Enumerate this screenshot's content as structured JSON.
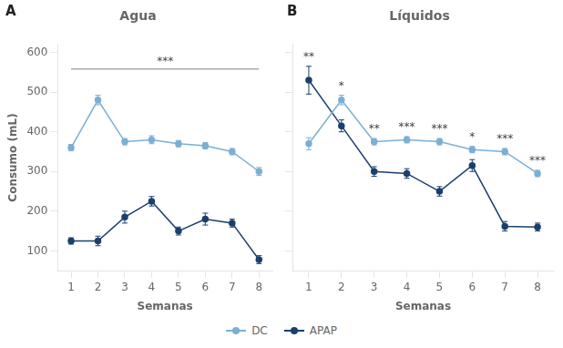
{
  "chart_data": [
    {
      "type": "line",
      "title": "Agua",
      "panel_label": "A",
      "xlabel": "Semanas",
      "ylabel": "Consumo (mL)",
      "x": [
        1,
        2,
        3,
        4,
        5,
        6,
        7,
        8
      ],
      "xlim": [
        0.5,
        8.5
      ],
      "xticks": [
        1,
        2,
        3,
        4,
        5,
        6,
        7,
        8
      ],
      "ylim": [
        50,
        620
      ],
      "yticks": [
        100,
        200,
        300,
        400,
        500,
        600
      ],
      "grid": false,
      "legend": "bottom",
      "series": [
        {
          "name": "DC",
          "color": "#7bafd4",
          "marker": "circle",
          "values": [
            360,
            480,
            375,
            380,
            370,
            365,
            350,
            300
          ],
          "errors": [
            8,
            12,
            8,
            10,
            8,
            8,
            8,
            10
          ]
        },
        {
          "name": "APAP",
          "color": "#1c3f6e",
          "marker": "circle",
          "values": [
            125,
            125,
            185,
            225,
            150,
            180,
            170,
            78
          ],
          "errors": [
            8,
            12,
            15,
            12,
            10,
            15,
            10,
            10
          ]
        }
      ],
      "annotations": [
        {
          "text": "***",
          "x": [
            1,
            8
          ],
          "y": 558
        }
      ]
    },
    {
      "type": "line",
      "title": "Líquidos",
      "panel_label": "B",
      "xlabel": "Semanas",
      "x": [
        1,
        2,
        3,
        4,
        5,
        6,
        7,
        8
      ],
      "xlim": [
        0.5,
        8.5
      ],
      "xticks": [
        1,
        2,
        3,
        4,
        5,
        6,
        7,
        8
      ],
      "ylim": [
        50,
        620
      ],
      "yticks": [
        100,
        200,
        300,
        400,
        500,
        600
      ],
      "grid": false,
      "tick_labels": "x",
      "series": [
        {
          "name": "DC",
          "color": "#7bafd4",
          "marker": "circle",
          "values": [
            370,
            480,
            375,
            380,
            375,
            355,
            350,
            295
          ],
          "errors": [
            15,
            12,
            8,
            8,
            8,
            8,
            8,
            8
          ]
        },
        {
          "name": "APAP",
          "color": "#1c3f6e",
          "marker": "circle",
          "values": [
            530,
            415,
            300,
            295,
            250,
            315,
            162,
            160
          ],
          "errors": [
            35,
            15,
            12,
            12,
            12,
            15,
            12,
            10
          ]
        }
      ],
      "annotations": [
        {
          "text": "**",
          "x": 1
        },
        {
          "text": "*",
          "x": 2
        },
        {
          "text": "**",
          "x": 3
        },
        {
          "text": "***",
          "x": 4
        },
        {
          "text": "***",
          "x": 5
        },
        {
          "text": "*",
          "x": 6
        },
        {
          "text": "***",
          "x": 7
        },
        {
          "text": "***",
          "x": 8
        }
      ]
    }
  ]
}
